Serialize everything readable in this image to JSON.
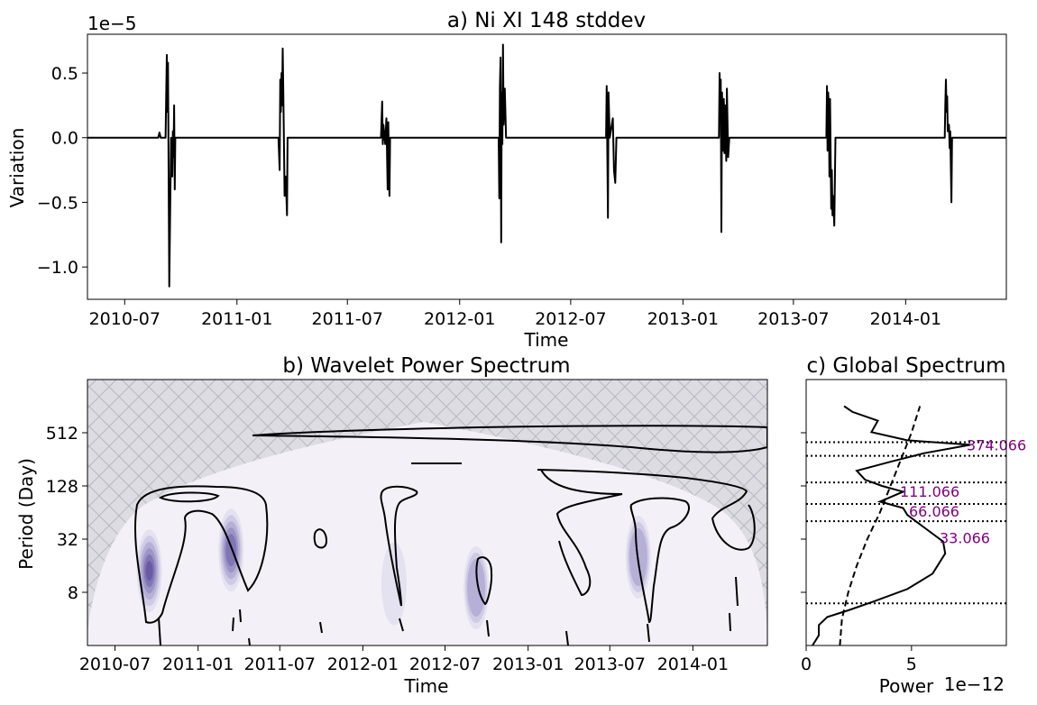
{
  "chart_data": [
    {
      "type": "line",
      "title": "a) Ni XI 148 stddev",
      "xlabel": "Time",
      "ylabel": "Variation",
      "offset_label": "1e−5",
      "xlim": [
        "2010-05-01",
        "2014-06-15"
      ],
      "ylim": [
        -1.25,
        0.8
      ],
      "x_ticks": [
        "2010-07",
        "2011-01",
        "2011-07",
        "2012-01",
        "2012-07",
        "2013-01",
        "2013-07",
        "2014-01"
      ],
      "y_ticks": [
        {
          "v": 0.5,
          "label": "0.5"
        },
        {
          "v": 0.0,
          "label": "0.0"
        },
        {
          "v": -0.5,
          "label": "−0.5"
        },
        {
          "v": -1.0,
          "label": "−1.0"
        }
      ],
      "series": [
        {
          "values": [
            [
              "2010-05-01",
              0
            ],
            [
              "2010-08-25",
              0
            ],
            [
              "2010-08-27",
              0.04
            ],
            [
              "2010-08-29",
              0
            ],
            [
              "2010-09-06",
              0
            ],
            [
              "2010-09-08",
              0.64
            ],
            [
              "2010-09-09",
              0.2
            ],
            [
              "2010-09-10",
              0.58
            ],
            [
              "2010-09-12",
              -1.15
            ],
            [
              "2010-09-14",
              -0.4
            ],
            [
              "2010-09-15",
              0
            ],
            [
              "2010-09-17",
              -0.3
            ],
            [
              "2010-09-18",
              0.05
            ],
            [
              "2010-09-19",
              -0.15
            ],
            [
              "2010-09-20",
              0.25
            ],
            [
              "2010-09-21",
              -0.4
            ],
            [
              "2010-09-22",
              0
            ],
            [
              "2011-03-10",
              0
            ],
            [
              "2011-03-12",
              -0.25
            ],
            [
              "2011-03-13",
              0.45
            ],
            [
              "2011-03-14",
              0.2
            ],
            [
              "2011-03-15",
              0.5
            ],
            [
              "2011-03-16",
              0.25
            ],
            [
              "2011-03-17",
              0.69
            ],
            [
              "2011-03-18",
              0.35
            ],
            [
              "2011-03-20",
              -0.45
            ],
            [
              "2011-03-22",
              -0.3
            ],
            [
              "2011-03-24",
              -0.6
            ],
            [
              "2011-03-25",
              0
            ],
            [
              "2011-08-25",
              0
            ],
            [
              "2011-08-27",
              0.28
            ],
            [
              "2011-08-28",
              -0.05
            ],
            [
              "2011-08-29",
              0.1
            ],
            [
              "2011-09-01",
              -0.05
            ],
            [
              "2011-09-03",
              0.15
            ],
            [
              "2011-09-05",
              -0.4
            ],
            [
              "2011-09-06",
              0.12
            ],
            [
              "2011-09-08",
              -0.45
            ],
            [
              "2011-09-09",
              0
            ],
            [
              "2012-03-05",
              0
            ],
            [
              "2012-03-06",
              -0.47
            ],
            [
              "2012-03-07",
              0.4
            ],
            [
              "2012-03-08",
              0.62
            ],
            [
              "2012-03-09",
              -0.81
            ],
            [
              "2012-03-10",
              0.35
            ],
            [
              "2012-03-11",
              -0.05
            ],
            [
              "2012-03-12",
              0.72
            ],
            [
              "2012-03-13",
              0.1
            ],
            [
              "2012-03-15",
              0.38
            ],
            [
              "2012-03-17",
              0
            ],
            [
              "2012-08-28",
              0
            ],
            [
              "2012-08-29",
              0.4
            ],
            [
              "2012-08-31",
              -0.62
            ],
            [
              "2012-09-01",
              0.35
            ],
            [
              "2012-09-03",
              0
            ],
            [
              "2012-09-08",
              0.15
            ],
            [
              "2012-09-10",
              -0.25
            ],
            [
              "2012-09-12",
              -0.35
            ],
            [
              "2012-09-14",
              0
            ],
            [
              "2013-03-01",
              0
            ],
            [
              "2013-03-02",
              0.5
            ],
            [
              "2013-03-03",
              0.2
            ],
            [
              "2013-03-04",
              0.45
            ],
            [
              "2013-03-05",
              -0.73
            ],
            [
              "2013-03-06",
              0.35
            ],
            [
              "2013-03-08",
              -0.1
            ],
            [
              "2013-03-09",
              0.3
            ],
            [
              "2013-03-10",
              -0.12
            ],
            [
              "2013-03-11",
              0.25
            ],
            [
              "2013-03-13",
              -0.18
            ],
            [
              "2013-03-14",
              0.38
            ],
            [
              "2013-03-16",
              -0.15
            ],
            [
              "2013-03-18",
              0
            ],
            [
              "2013-08-24",
              0
            ],
            [
              "2013-08-25",
              0.4
            ],
            [
              "2013-08-26",
              -0.1
            ],
            [
              "2013-08-27",
              0.35
            ],
            [
              "2013-08-28",
              0.25
            ],
            [
              "2013-08-29",
              -0.3
            ],
            [
              "2013-08-30",
              0.3
            ],
            [
              "2013-09-01",
              -0.55
            ],
            [
              "2013-09-02",
              -0.25
            ],
            [
              "2013-09-03",
              -0.6
            ],
            [
              "2013-09-04",
              -0.45
            ],
            [
              "2013-09-06",
              -0.68
            ],
            [
              "2013-09-08",
              0
            ],
            [
              "2014-03-06",
              0
            ],
            [
              "2014-03-07",
              0.25
            ],
            [
              "2014-03-08",
              0.45
            ],
            [
              "2014-03-09",
              0.2
            ],
            [
              "2014-03-10",
              0.32
            ],
            [
              "2014-03-11",
              0.05
            ],
            [
              "2014-03-13",
              0.1
            ],
            [
              "2014-03-14",
              -0.08
            ],
            [
              "2014-03-15",
              0.05
            ],
            [
              "2014-03-17",
              -0.5
            ],
            [
              "2014-03-18",
              0
            ],
            [
              "2014-06-15",
              0
            ]
          ]
        }
      ]
    },
    {
      "type": "heatmap",
      "title": "b) Wavelet Power Spectrum",
      "xlabel": "Time",
      "ylabel": "Period (Day)",
      "xlim": [
        "2010-05-01",
        "2014-06-15"
      ],
      "ylim_log2": [
        1,
        11
      ],
      "x_ticks": [
        "2010-07",
        "2011-01",
        "2011-07",
        "2012-01",
        "2012-07",
        "2013-01",
        "2013-07",
        "2014-01"
      ],
      "y_ticks": [
        {
          "v": 8,
          "label": "8"
        },
        {
          "v": 32,
          "label": "32"
        },
        {
          "v": 128,
          "label": "128"
        },
        {
          "v": 512,
          "label": "512"
        }
      ],
      "power_peaks": [
        {
          "time": "2010-09-15",
          "period": 14,
          "level": 6
        },
        {
          "time": "2011-03-15",
          "period": 24,
          "level": 5
        },
        {
          "time": "2012-09-08",
          "period": 9,
          "level": 3
        },
        {
          "time": "2013-09-02",
          "period": 20,
          "level": 3
        },
        {
          "time": "2012-03-10",
          "period": 10,
          "level": 1
        }
      ]
    },
    {
      "type": "line",
      "title": "c) Global Spectrum",
      "xlabel": "Power",
      "offset_label": "1e−12",
      "xlim": [
        0,
        9.5
      ],
      "x_ticks": [
        {
          "v": 0,
          "label": "0"
        },
        {
          "v": 5,
          "label": "5"
        }
      ],
      "series": [
        {
          "style": "solid",
          "values": [
            [
              0.3,
              2
            ],
            [
              0.6,
              2.6
            ],
            [
              0.6,
              3.4
            ],
            [
              1.0,
              4.2
            ],
            [
              2.0,
              5
            ],
            [
              3.2,
              6.3
            ],
            [
              4.8,
              8.7
            ],
            [
              6.0,
              13
            ],
            [
              6.6,
              22
            ],
            [
              6.5,
              30
            ],
            [
              5.8,
              40
            ],
            [
              4.8,
              60
            ],
            [
              4.6,
              72
            ],
            [
              3.5,
              85
            ],
            [
              4.6,
              110
            ],
            [
              3.6,
              128
            ],
            [
              2.8,
              150
            ],
            [
              2.4,
              190
            ],
            [
              4.0,
              240
            ],
            [
              5.6,
              300
            ],
            [
              7.8,
              374
            ],
            [
              4.8,
              420
            ],
            [
              3.1,
              520
            ],
            [
              3.4,
              700
            ],
            [
              2.2,
              880
            ],
            [
              1.8,
              1024
            ]
          ]
        },
        {
          "style": "dashed",
          "values": [
            [
              1.6,
              2
            ],
            [
              1.7,
              4
            ],
            [
              2.0,
              8
            ],
            [
              2.4,
              16
            ],
            [
              2.9,
              32
            ],
            [
              3.5,
              64
            ],
            [
              4.0,
              128
            ],
            [
              4.5,
              256
            ],
            [
              5.0,
              512
            ],
            [
              5.4,
              1024
            ]
          ]
        }
      ],
      "peaks": [
        {
          "period": 374.066,
          "label": "374.066"
        },
        {
          "period": 111.066,
          "label": "111.066"
        },
        {
          "period": 66.066,
          "label": "66.066"
        },
        {
          "period": 33.066,
          "label": "33.066"
        }
      ],
      "dotted_lines": [
        6,
        51,
        80,
        140,
        280,
        400
      ],
      "label_color": "#800080"
    }
  ]
}
